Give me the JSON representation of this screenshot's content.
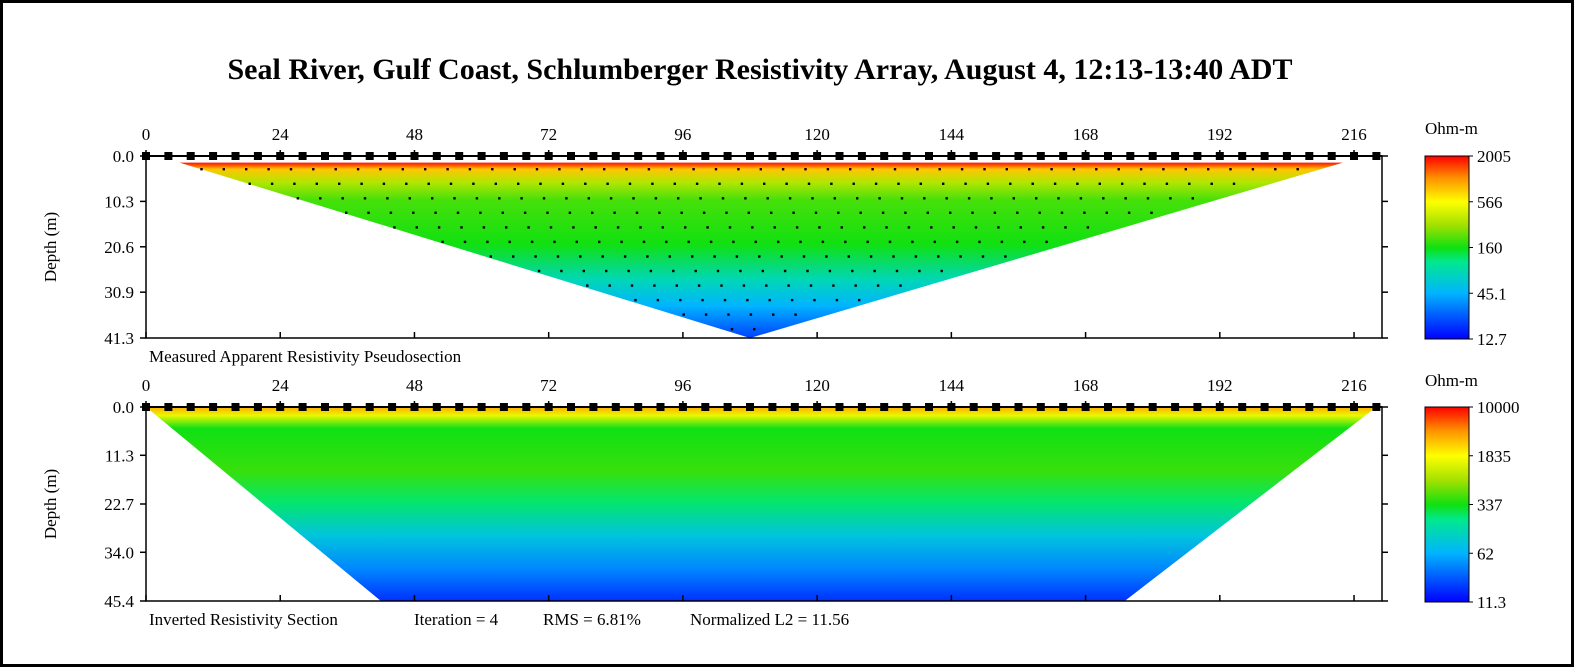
{
  "chart_data": [
    {
      "type": "heatmap",
      "title": "Seal River, Gulf Coast, Schlumberger Resistivity Array, August 4, 12:13-13:40 ADT",
      "caption": "Measured Apparent Resistivity Pseudosection",
      "ylabel": "Depth (m)",
      "x_ticks": [
        "0",
        "24",
        "48",
        "72",
        "96",
        "120",
        "144",
        "168",
        "192",
        "216"
      ],
      "xlim": [
        0,
        221
      ],
      "y_ticks": [
        "0.0",
        "10.3",
        "20.6",
        "30.9",
        "41.3"
      ],
      "ylim": [
        0,
        41.3
      ],
      "colorbar": {
        "unit": "Ohm-m",
        "labels": [
          "2005",
          "566",
          "160",
          "45.1",
          "12.7"
        ],
        "min": 12.7,
        "max": 2005,
        "scale": "log"
      },
      "data_region": {
        "top_left": [
          6,
          1.5
        ],
        "top_right": [
          214,
          1.5
        ],
        "apex": [
          108,
          41.3
        ]
      },
      "electrode_spacing_m": 4,
      "resistivity_profile": [
        {
          "depth": 1.5,
          "value": 1900
        },
        {
          "depth": 3,
          "value": 800
        },
        {
          "depth": 6,
          "value": 330
        },
        {
          "depth": 10,
          "value": 200
        },
        {
          "depth": 20,
          "value": 160
        },
        {
          "depth": 28,
          "value": 80
        },
        {
          "depth": 34,
          "value": 45
        },
        {
          "depth": 41.3,
          "value": 20
        }
      ]
    },
    {
      "type": "heatmap",
      "caption": "Inverted Resistivity Section",
      "iteration": "Iteration = 4",
      "rms": "RMS = 6.81%",
      "l2": "Normalized L2 = 11.56",
      "ylabel": "Depth (m)",
      "x_ticks": [
        "0",
        "24",
        "48",
        "72",
        "96",
        "120",
        "144",
        "168",
        "192",
        "216"
      ],
      "xlim": [
        0,
        221
      ],
      "y_ticks": [
        "0.0",
        "11.3",
        "22.7",
        "34.0",
        "45.4"
      ],
      "ylim": [
        0,
        45.4
      ],
      "colorbar": {
        "unit": "Ohm-m",
        "labels": [
          "10000",
          "1835",
          "337",
          "62",
          "11.3"
        ],
        "min": 11.3,
        "max": 10000,
        "scale": "log"
      },
      "data_region": {
        "top_left": [
          0,
          0
        ],
        "top_right": [
          220,
          0
        ],
        "bottom_left": [
          42,
          45.4
        ],
        "bottom_right": [
          175,
          45.4
        ]
      },
      "electrode_spacing_m": 4,
      "resistivity_profile": [
        {
          "depth": 0,
          "value": 3500
        },
        {
          "depth": 2,
          "value": 1500
        },
        {
          "depth": 5,
          "value": 330
        },
        {
          "depth": 15,
          "value": 420
        },
        {
          "depth": 22,
          "value": 230
        },
        {
          "depth": 30,
          "value": 90
        },
        {
          "depth": 38,
          "value": 40
        },
        {
          "depth": 45.4,
          "value": 18
        }
      ]
    }
  ]
}
